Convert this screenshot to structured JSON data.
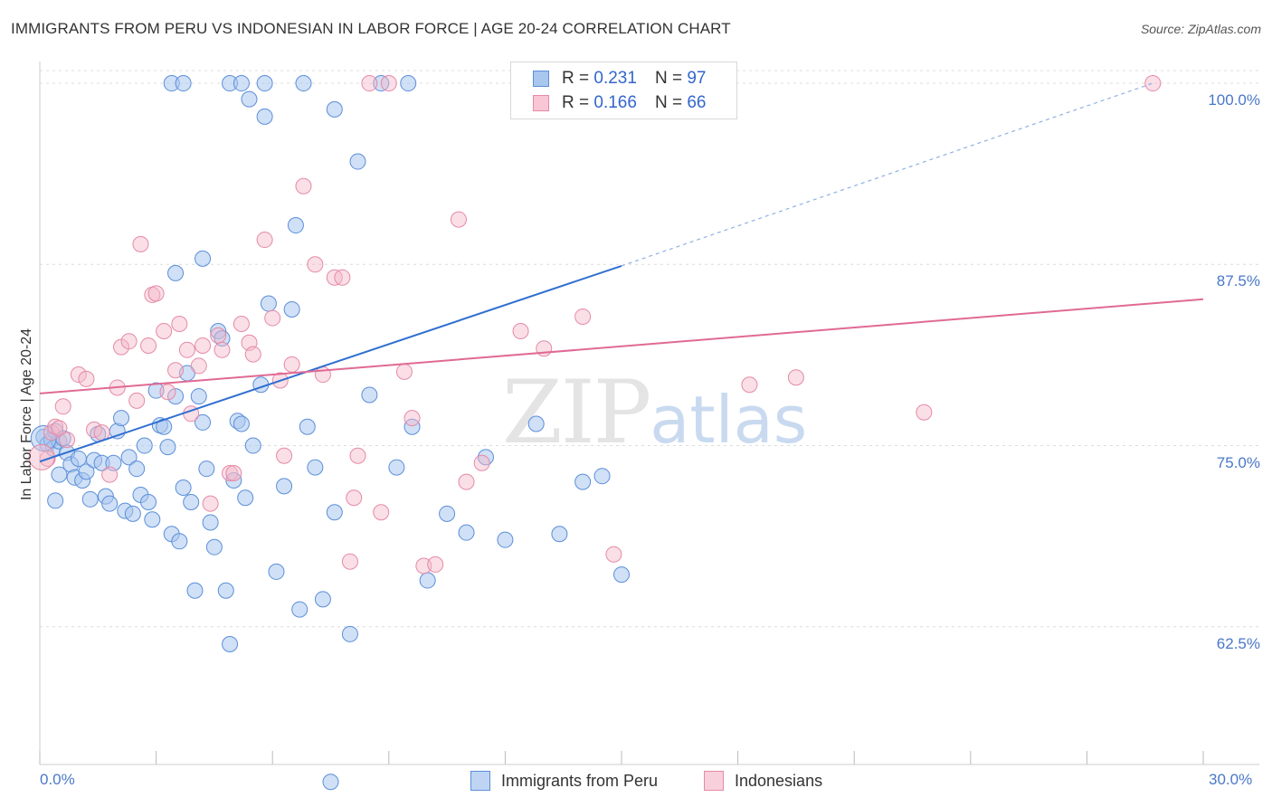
{
  "header": {
    "title": "IMMIGRANTS FROM PERU VS INDONESIAN IN LABOR FORCE | AGE 20-24 CORRELATION CHART",
    "source": "Source: ZipAtlas.com"
  },
  "watermark": {
    "zip": "ZIP",
    "atlas": "atlas"
  },
  "colors": {
    "blue_fill": "#a9c6ee",
    "blue_stroke": "#5b8fd9",
    "blue_line": "#2f6fd0",
    "pink_fill": "#f4b8ca",
    "pink_stroke": "#e58aa7",
    "pink_line": "#e06a95",
    "grid": "#dcdcdc",
    "tick_label": "#4a78c8"
  },
  "legend": {
    "rows": [
      {
        "r_label": "R = ",
        "r_value": "0.231",
        "n_label": "N = ",
        "n_value": "97"
      },
      {
        "r_label": "R = ",
        "r_value": "0.166",
        "n_label": "N = ",
        "n_value": "66"
      }
    ]
  },
  "bottom_legend": [
    "Immigrants from Peru",
    "Indonesians"
  ],
  "chart_data": {
    "type": "scatter",
    "title": "IMMIGRANTS FROM PERU VS INDONESIAN IN LABOR FORCE | AGE 20-24 CORRELATION CHART",
    "xlabel": "",
    "ylabel": "In Labor Force | Age 20-24",
    "xlim": [
      0,
      30
    ],
    "ylim": [
      53,
      101.5
    ],
    "x_tick_labels": [
      "0.0%",
      "30.0%"
    ],
    "y_ticks": [
      62.5,
      75.0,
      87.5,
      100.0
    ],
    "y_tick_labels": [
      "62.5%",
      "75.0%",
      "87.5%",
      "100.0%"
    ],
    "grid": true,
    "legend_position": "top-center",
    "series": [
      {
        "name": "Immigrants from Peru",
        "R": 0.231,
        "N": 97,
        "trend": {
          "x0": 0,
          "y0": 73.9,
          "x1": 15.0,
          "y1": 87.4,
          "dashed_to_x": 28.7,
          "dashed_to_y": 100.0
        },
        "points": [
          [
            0.1,
            75.6
          ],
          [
            0.2,
            75.1
          ],
          [
            0.3,
            75.4
          ],
          [
            0.35,
            74.8
          ],
          [
            0.4,
            76.0
          ],
          [
            0.5,
            75.3
          ],
          [
            0.6,
            75.5
          ],
          [
            0.7,
            74.5
          ],
          [
            0.8,
            73.7
          ],
          [
            0.9,
            72.8
          ],
          [
            1.0,
            74.1
          ],
          [
            1.1,
            72.6
          ],
          [
            1.2,
            73.2
          ],
          [
            1.3,
            71.3
          ],
          [
            1.4,
            74.0
          ],
          [
            1.5,
            75.8
          ],
          [
            1.6,
            73.8
          ],
          [
            1.7,
            71.5
          ],
          [
            1.8,
            71.0
          ],
          [
            1.9,
            73.8
          ],
          [
            2.0,
            76.0
          ],
          [
            2.1,
            76.9
          ],
          [
            2.2,
            70.5
          ],
          [
            2.3,
            74.2
          ],
          [
            2.4,
            70.3
          ],
          [
            2.5,
            73.4
          ],
          [
            2.6,
            71.6
          ],
          [
            2.7,
            75.0
          ],
          [
            2.8,
            71.1
          ],
          [
            2.9,
            69.9
          ],
          [
            3.0,
            78.8
          ],
          [
            3.1,
            76.4
          ],
          [
            3.2,
            76.3
          ],
          [
            3.3,
            74.9
          ],
          [
            3.4,
            68.9
          ],
          [
            3.5,
            78.4
          ],
          [
            3.6,
            68.4
          ],
          [
            3.7,
            72.1
          ],
          [
            3.8,
            80.0
          ],
          [
            3.9,
            71.1
          ],
          [
            4.0,
            65.0
          ],
          [
            4.1,
            78.4
          ],
          [
            4.2,
            76.6
          ],
          [
            4.3,
            73.4
          ],
          [
            4.4,
            69.7
          ],
          [
            4.5,
            68.0
          ],
          [
            4.6,
            82.9
          ],
          [
            4.7,
            82.4
          ],
          [
            4.8,
            65.0
          ],
          [
            4.9,
            61.3
          ],
          [
            5.0,
            72.6
          ],
          [
            5.1,
            76.7
          ],
          [
            5.2,
            76.5
          ],
          [
            5.3,
            71.4
          ],
          [
            5.5,
            75.0
          ],
          [
            5.7,
            79.2
          ],
          [
            5.9,
            84.8
          ],
          [
            6.1,
            66.3
          ],
          [
            6.3,
            72.2
          ],
          [
            6.5,
            84.4
          ],
          [
            6.7,
            63.7
          ],
          [
            6.9,
            76.3
          ],
          [
            7.1,
            73.5
          ],
          [
            7.3,
            64.4
          ],
          [
            7.6,
            70.4
          ],
          [
            8.0,
            62.0
          ],
          [
            8.2,
            94.6
          ],
          [
            8.5,
            78.5
          ],
          [
            9.2,
            73.5
          ],
          [
            9.6,
            76.3
          ],
          [
            10.0,
            65.7
          ],
          [
            10.5,
            70.3
          ],
          [
            11.0,
            69.0
          ],
          [
            11.5,
            74.2
          ],
          [
            12.0,
            68.5
          ],
          [
            12.8,
            76.5
          ],
          [
            13.4,
            68.9
          ],
          [
            14.0,
            72.5
          ],
          [
            14.5,
            72.9
          ],
          [
            15.0,
            66.1
          ],
          [
            3.4,
            100.0
          ],
          [
            3.7,
            100.0
          ],
          [
            4.9,
            100.0
          ],
          [
            5.2,
            100.0
          ],
          [
            5.8,
            100.0
          ],
          [
            6.8,
            100.0
          ],
          [
            8.8,
            100.0
          ],
          [
            9.5,
            100.0
          ],
          [
            5.4,
            98.9
          ],
          [
            5.8,
            97.7
          ],
          [
            7.6,
            98.2
          ],
          [
            6.6,
            90.2
          ],
          [
            4.2,
            87.9
          ],
          [
            3.5,
            86.9
          ],
          [
            0.5,
            73.0
          ],
          [
            0.4,
            71.2
          ],
          [
            7.5,
            51.8
          ]
        ]
      },
      {
        "name": "Indonesians",
        "R": 0.166,
        "N": 66,
        "trend": {
          "x0": 0,
          "y0": 78.6,
          "x1": 30,
          "y1": 85.1
        },
        "points": [
          [
            0.2,
            74.1
          ],
          [
            0.3,
            75.9
          ],
          [
            0.4,
            76.3
          ],
          [
            0.5,
            76.2
          ],
          [
            0.6,
            77.7
          ],
          [
            0.7,
            75.4
          ],
          [
            1.0,
            79.9
          ],
          [
            1.2,
            79.6
          ],
          [
            1.4,
            76.1
          ],
          [
            1.6,
            75.9
          ],
          [
            1.8,
            73.0
          ],
          [
            2.0,
            79.0
          ],
          [
            2.1,
            81.8
          ],
          [
            2.3,
            82.2
          ],
          [
            2.5,
            78.1
          ],
          [
            2.6,
            88.9
          ],
          [
            2.8,
            81.9
          ],
          [
            2.9,
            85.4
          ],
          [
            3.0,
            85.5
          ],
          [
            3.2,
            82.9
          ],
          [
            3.3,
            78.7
          ],
          [
            3.5,
            80.2
          ],
          [
            3.6,
            83.4
          ],
          [
            3.8,
            81.6
          ],
          [
            3.9,
            77.2
          ],
          [
            4.1,
            80.5
          ],
          [
            4.2,
            81.9
          ],
          [
            4.4,
            71.0
          ],
          [
            4.6,
            82.6
          ],
          [
            4.7,
            81.6
          ],
          [
            4.9,
            73.1
          ],
          [
            5.0,
            73.1
          ],
          [
            5.2,
            83.4
          ],
          [
            5.4,
            82.1
          ],
          [
            5.5,
            81.3
          ],
          [
            5.8,
            89.2
          ],
          [
            6.0,
            83.8
          ],
          [
            6.2,
            79.5
          ],
          [
            6.3,
            74.3
          ],
          [
            6.5,
            80.6
          ],
          [
            6.8,
            92.9
          ],
          [
            7.1,
            87.5
          ],
          [
            7.3,
            79.9
          ],
          [
            7.6,
            86.6
          ],
          [
            7.8,
            86.6
          ],
          [
            8.1,
            71.4
          ],
          [
            8.2,
            74.3
          ],
          [
            8.5,
            100.0
          ],
          [
            9.0,
            100.0
          ],
          [
            9.4,
            80.1
          ],
          [
            9.6,
            76.9
          ],
          [
            9.9,
            66.7
          ],
          [
            10.2,
            66.8
          ],
          [
            10.8,
            90.6
          ],
          [
            11.0,
            72.5
          ],
          [
            11.4,
            73.8
          ],
          [
            12.4,
            82.9
          ],
          [
            13.0,
            81.7
          ],
          [
            14.0,
            83.9
          ],
          [
            14.8,
            67.5
          ],
          [
            18.3,
            79.2
          ],
          [
            19.5,
            79.7
          ],
          [
            22.8,
            77.3
          ],
          [
            28.7,
            100.0
          ],
          [
            8.0,
            67.0
          ],
          [
            8.8,
            70.4
          ]
        ]
      }
    ]
  }
}
